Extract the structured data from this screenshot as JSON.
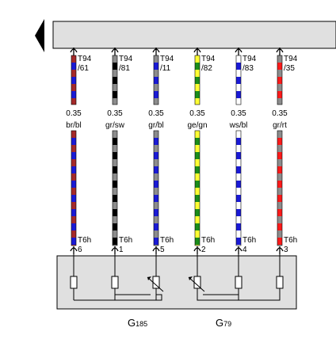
{
  "wires": [
    {
      "id": "w1",
      "connector_top": "T94",
      "pin_top": "/61",
      "size": "0.35",
      "color_code": "br/bl",
      "colors": [
        "#a52a2a",
        "#1a1ad6"
      ],
      "connector_bottom": "T6h",
      "pin_bottom": "6"
    },
    {
      "id": "w2",
      "connector_top": "T94",
      "pin_top": "/81",
      "size": "0.35",
      "color_code": "gr/sw",
      "colors": [
        "#8c8c8c",
        "#000000"
      ],
      "connector_bottom": "T6h",
      "pin_bottom": "1"
    },
    {
      "id": "w3",
      "connector_top": "T94",
      "pin_top": "/11",
      "size": "0.35",
      "color_code": "gr/bl",
      "colors": [
        "#8c8c8c",
        "#1a1ad6"
      ],
      "connector_bottom": "T6h",
      "pin_bottom": "5"
    },
    {
      "id": "w4",
      "connector_top": "T94",
      "pin_top": "/82",
      "size": "0.35",
      "color_code": "ge/gn",
      "colors": [
        "#ffff33",
        "#1a8c1a"
      ],
      "connector_bottom": "T6h",
      "pin_bottom": "2"
    },
    {
      "id": "w5",
      "connector_top": "T94",
      "pin_top": "/83",
      "size": "0.35",
      "color_code": "ws/bl",
      "colors": [
        "#ffffff",
        "#1a1ad6"
      ],
      "connector_bottom": "T6h",
      "pin_bottom": "4"
    },
    {
      "id": "w6",
      "connector_top": "T94",
      "pin_top": "/35",
      "size": "0.35",
      "color_code": "gr/rt",
      "colors": [
        "#8c8c8c",
        "#ff1a1a"
      ],
      "connector_bottom": "T6h",
      "pin_bottom": "3"
    }
  ],
  "components": [
    {
      "main": "G",
      "sub": "185"
    },
    {
      "main": "G",
      "sub": "79"
    }
  ],
  "colors": {
    "top_bar_fill": "#e0e0e0",
    "component_box_fill": "#e0e0e0",
    "line": "#000000"
  }
}
